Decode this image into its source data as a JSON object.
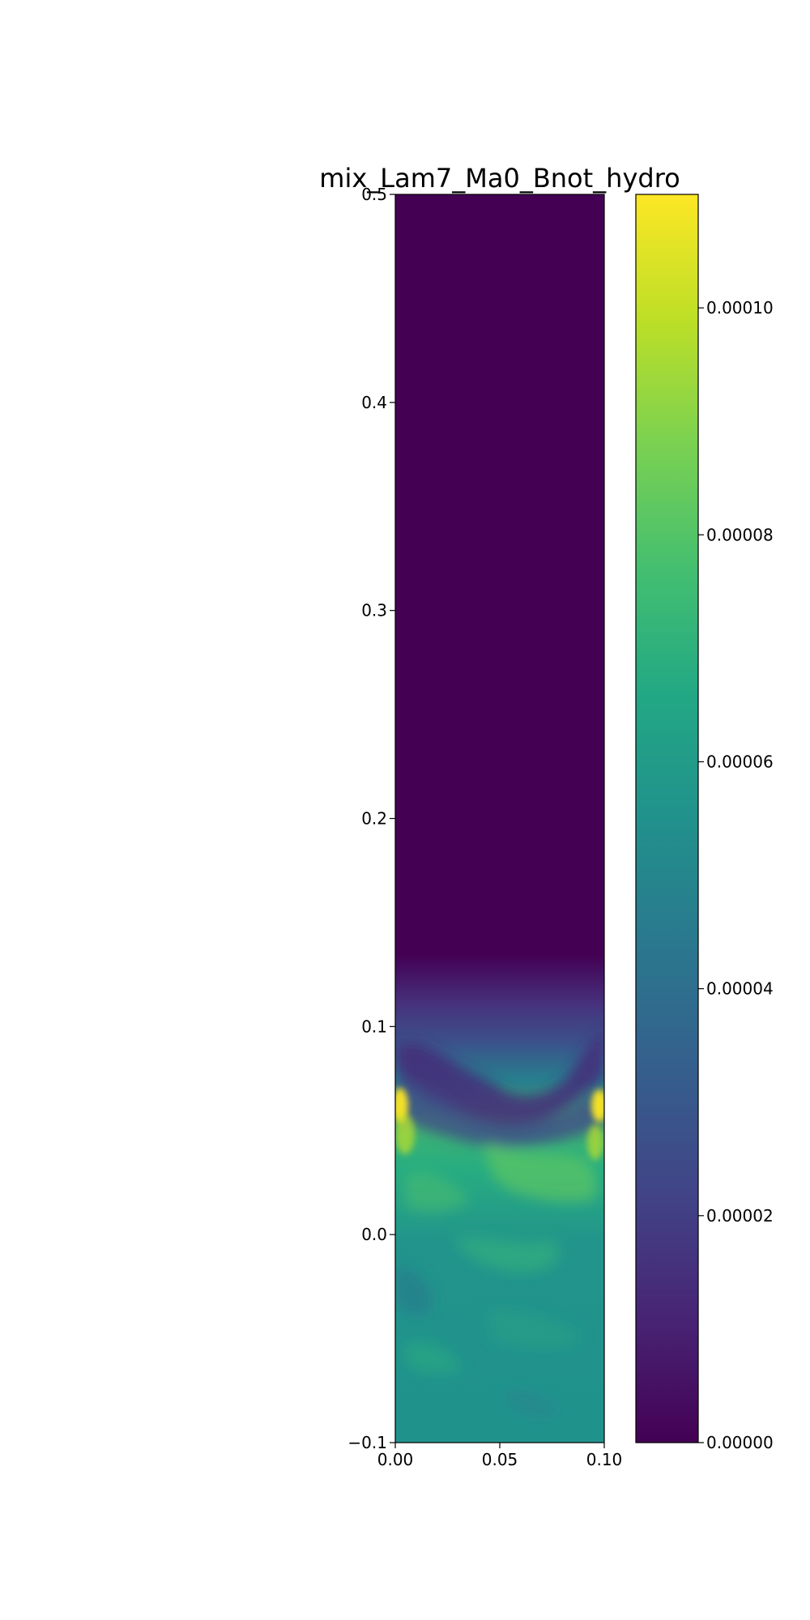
{
  "chart_data": {
    "type": "heatmap",
    "title": "mix_Lam7_Ma0_Bnot_hydro",
    "xlabel": "",
    "ylabel": "",
    "xlim": [
      0.0,
      0.1
    ],
    "ylim": [
      -0.1,
      0.5
    ],
    "x_ticks": [
      "0.00",
      "0.05",
      "0.10"
    ],
    "y_ticks": [
      "−0.1",
      "0.0",
      "0.1",
      "0.2",
      "0.3",
      "0.4",
      "0.5"
    ],
    "colormap": "viridis",
    "colorbar": {
      "range": [
        0.0,
        0.00011
      ],
      "ticks": [
        "0.00000",
        "0.00002",
        "0.00004",
        "0.00006",
        "0.00008",
        "0.00010"
      ]
    },
    "field_description_values": {
      "upper_region_value": 0.0,
      "mixing_front_height": 0.1,
      "lower_region_typical_value": 6e-05,
      "peak_value": 0.000105,
      "peak_height": 0.06
    },
    "colors": {
      "min": "#440154",
      "low": "#3b528b",
      "mid": "#21918c",
      "high": "#5ec962",
      "max": "#fde725"
    }
  }
}
